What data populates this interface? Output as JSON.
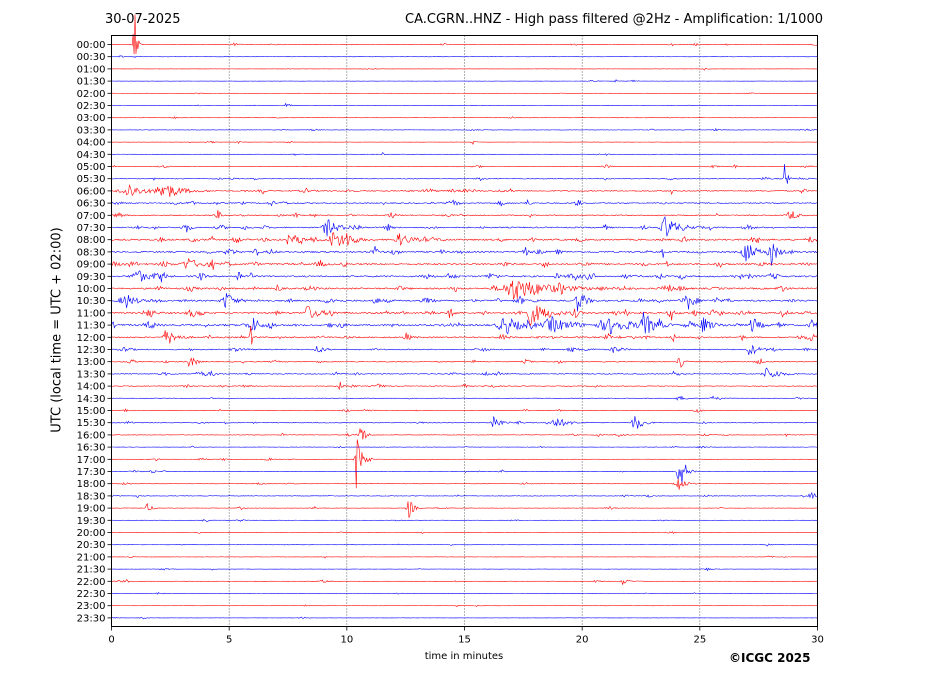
{
  "header": {
    "date": "30-07-2025",
    "title": "CA.CGRN..HNZ - High pass filtered @2Hz - Amplification: 1/1000"
  },
  "footer": {
    "copyright": "©ICGC 2025"
  },
  "chart_data": {
    "type": "line",
    "title": "CA.CGRN..HNZ - High pass filtered @2Hz - Amplification: 1/1000",
    "xlabel": "time in minutes",
    "ylabel": "UTC (local time = UTC + 02:00)",
    "xlim": [
      0,
      30
    ],
    "x_ticks": [
      "0",
      "5",
      "10",
      "15",
      "20",
      "25",
      "30"
    ],
    "y_ticks": [
      "00:00",
      "00:30",
      "01:00",
      "01:30",
      "02:00",
      "02:30",
      "03:00",
      "03:30",
      "04:00",
      "04:30",
      "05:00",
      "05:30",
      "06:00",
      "06:30",
      "07:00",
      "07:30",
      "08:00",
      "08:30",
      "09:00",
      "09:30",
      "10:00",
      "10:30",
      "11:00",
      "11:30",
      "12:00",
      "12:30",
      "13:00",
      "13:30",
      "14:00",
      "14:30",
      "15:00",
      "15:30",
      "16:00",
      "16:30",
      "17:00",
      "17:30",
      "18:00",
      "18:30",
      "19:00",
      "19:30",
      "20:00",
      "20:30",
      "21:00",
      "21:30",
      "22:00",
      "22:30",
      "23:00",
      "23:30"
    ],
    "grid": "vertical-dotted",
    "colors": {
      "even_rows": "#ff0000",
      "odd_rows": "#0000ff",
      "grid": "#000000"
    },
    "noise_level": [
      0.3,
      0.15,
      0.1,
      0.1,
      0.1,
      0.1,
      0.15,
      0.2,
      0.15,
      0.2,
      0.3,
      0.4,
      0.6,
      0.6,
      0.6,
      0.7,
      0.9,
      0.9,
      0.9,
      0.9,
      0.9,
      0.9,
      1.0,
      1.0,
      0.8,
      0.6,
      0.5,
      0.5,
      0.4,
      0.3,
      0.3,
      0.4,
      0.3,
      0.2,
      0.2,
      0.3,
      0.2,
      0.3,
      0.2,
      0.15,
      0.15,
      0.15,
      0.15,
      0.15,
      0.2,
      0.15,
      0.1,
      0.1
    ],
    "events": [
      {
        "row": 0,
        "t": 0.95,
        "amp": 60,
        "dur": 0.12
      },
      {
        "row": 5,
        "t": 7.4,
        "amp": 3,
        "dur": 0.2
      },
      {
        "row": 8,
        "t": 15.3,
        "amp": 5,
        "dur": 0.1
      },
      {
        "row": 12,
        "t": 0.7,
        "amp": 8,
        "dur": 0.6
      },
      {
        "row": 12,
        "t": 2.1,
        "amp": 9,
        "dur": 0.8
      },
      {
        "row": 11,
        "t": 28.6,
        "amp": 22,
        "dur": 0.1
      },
      {
        "row": 15,
        "t": 9.1,
        "amp": 10,
        "dur": 0.5
      },
      {
        "row": 15,
        "t": 23.5,
        "amp": 12,
        "dur": 0.6
      },
      {
        "row": 16,
        "t": 9.4,
        "amp": 10,
        "dur": 0.6
      },
      {
        "row": 16,
        "t": 7.5,
        "amp": 9,
        "dur": 0.2
      },
      {
        "row": 16,
        "t": 12.2,
        "amp": 7,
        "dur": 0.5
      },
      {
        "row": 17,
        "t": 26.9,
        "amp": 14,
        "dur": 0.4
      },
      {
        "row": 17,
        "t": 28.0,
        "amp": 12,
        "dur": 0.3
      },
      {
        "row": 18,
        "t": 3.2,
        "amp": 8,
        "dur": 0.4
      },
      {
        "row": 19,
        "t": 1.0,
        "amp": 9,
        "dur": 0.5
      },
      {
        "row": 19,
        "t": 5.3,
        "amp": 12,
        "dur": 0.1
      },
      {
        "row": 20,
        "t": 17.1,
        "amp": 12,
        "dur": 1.5
      },
      {
        "row": 21,
        "t": 0.6,
        "amp": 8,
        "dur": 0.4
      },
      {
        "row": 21,
        "t": 4.8,
        "amp": 8,
        "dur": 0.4
      },
      {
        "row": 21,
        "t": 19.8,
        "amp": 12,
        "dur": 0.3
      },
      {
        "row": 21,
        "t": 24.5,
        "amp": 9,
        "dur": 0.3
      },
      {
        "row": 22,
        "t": 8.3,
        "amp": 8,
        "dur": 0.4
      },
      {
        "row": 22,
        "t": 14.3,
        "amp": 7,
        "dur": 0.2
      },
      {
        "row": 22,
        "t": 17.8,
        "amp": 12,
        "dur": 0.7
      },
      {
        "row": 23,
        "t": 16.6,
        "amp": 9,
        "dur": 0.8
      },
      {
        "row": 23,
        "t": 18.6,
        "amp": 9,
        "dur": 0.8
      },
      {
        "row": 23,
        "t": 21.2,
        "amp": 9,
        "dur": 0.8
      },
      {
        "row": 23,
        "t": 22.6,
        "amp": 12,
        "dur": 0.5
      },
      {
        "row": 23,
        "t": 25.1,
        "amp": 9,
        "dur": 0.4
      },
      {
        "row": 23,
        "t": 27.2,
        "amp": 10,
        "dur": 0.3
      },
      {
        "row": 23,
        "t": 29.7,
        "amp": 7,
        "dur": 0.2
      },
      {
        "row": 24,
        "t": 2.3,
        "amp": 9,
        "dur": 0.4
      },
      {
        "row": 24,
        "t": 5.9,
        "amp": 14,
        "dur": 0.1
      },
      {
        "row": 25,
        "t": 8.7,
        "amp": 5,
        "dur": 0.3
      },
      {
        "row": 25,
        "t": 21.3,
        "amp": 5,
        "dur": 0.3
      },
      {
        "row": 25,
        "t": 27.1,
        "amp": 8,
        "dur": 0.3
      },
      {
        "row": 26,
        "t": 3.3,
        "amp": 9,
        "dur": 0.2
      },
      {
        "row": 26,
        "t": 24.1,
        "amp": 12,
        "dur": 0.15
      },
      {
        "row": 27,
        "t": 27.8,
        "amp": 6,
        "dur": 0.5
      },
      {
        "row": 31,
        "t": 16.2,
        "amp": 10,
        "dur": 0.3
      },
      {
        "row": 31,
        "t": 18.8,
        "amp": 6,
        "dur": 0.6
      },
      {
        "row": 31,
        "t": 22.2,
        "amp": 10,
        "dur": 0.3
      },
      {
        "row": 32,
        "t": 10.5,
        "amp": 20,
        "dur": 0.2
      },
      {
        "row": 34,
        "t": 10.4,
        "amp": 30,
        "dur": 0.25
      },
      {
        "row": 35,
        "t": 24.1,
        "amp": 28,
        "dur": 0.25
      },
      {
        "row": 36,
        "t": 24.0,
        "amp": 12,
        "dur": 0.3
      },
      {
        "row": 37,
        "t": 29.7,
        "amp": 5,
        "dur": 0.3
      },
      {
        "row": 38,
        "t": 12.6,
        "amp": 14,
        "dur": 0.2
      },
      {
        "row": 38,
        "t": 1.5,
        "amp": 5,
        "dur": 0.2
      },
      {
        "row": 39,
        "t": 3.9,
        "amp": 4,
        "dur": 0.2
      },
      {
        "row": 44,
        "t": 21.7,
        "amp": 4,
        "dur": 0.3
      }
    ]
  }
}
